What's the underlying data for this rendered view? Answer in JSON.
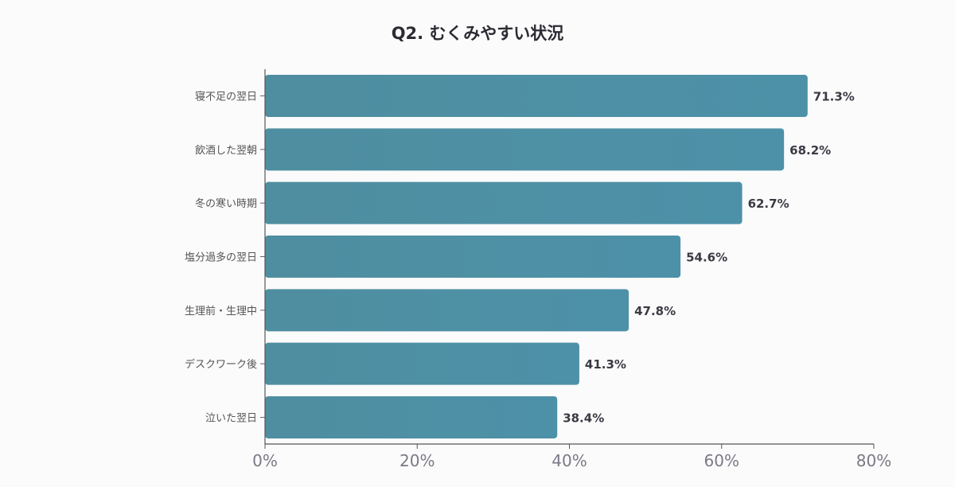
{
  "chart_data": {
    "type": "bar",
    "orientation": "horizontal",
    "title": "Q2. むくみやすい状況",
    "xlabel": "",
    "ylabel": "",
    "categories": [
      "寝不足の翌日",
      "飲酒した翌朝",
      "冬の寒い時期",
      "塩分過多の翌日",
      "生理前・生理中",
      "デスクワーク後",
      "泣いた翌日"
    ],
    "values": [
      71.3,
      68.2,
      62.7,
      54.6,
      47.8,
      41.3,
      38.4
    ],
    "value_labels": [
      "71.3%",
      "68.2%",
      "62.7%",
      "54.6%",
      "47.8%",
      "41.3%",
      "38.4%"
    ],
    "xlim": [
      0,
      80
    ],
    "x_ticks": [
      0,
      20,
      40,
      60,
      80
    ],
    "x_tick_labels": [
      "0%",
      "20%",
      "40%",
      "60%",
      "80%"
    ],
    "grid": false,
    "legend": "none",
    "bar_color": "#4d8fa3"
  }
}
